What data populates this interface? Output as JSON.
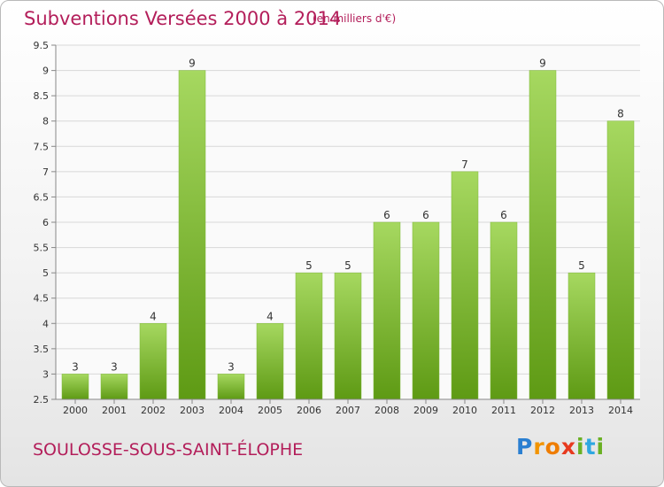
{
  "title": "Subventions Versées 2000 à 2014",
  "unit_note": "(en milliers d'€)",
  "location": "SOULOSSE-SOUS-SAINT-ÉLOPHE",
  "brand": "Proxiti",
  "colors": {
    "title": "#b31e5a",
    "bar_top": "#a6d860",
    "bar_bottom": "#5e9a14",
    "grid": "#d8d8d8"
  },
  "chart_data": {
    "type": "bar",
    "title": "Subventions Versées 2000 à 2014",
    "subtitle": "(en milliers d'€)",
    "xlabel": "",
    "ylabel": "",
    "categories": [
      "2000",
      "2001",
      "2002",
      "2003",
      "2004",
      "2005",
      "2006",
      "2007",
      "2008",
      "2009",
      "2010",
      "2011",
      "2012",
      "2013",
      "2014"
    ],
    "values": [
      3,
      3,
      4,
      9,
      3,
      4,
      5,
      5,
      6,
      6,
      7,
      6,
      9,
      5,
      8
    ],
    "ylim": [
      2.5,
      9.5
    ],
    "yticks": [
      "2.5",
      "3",
      "3.5",
      "4",
      "4.5",
      "5",
      "5.5",
      "6",
      "6.5",
      "7",
      "7.5",
      "8",
      "8.5",
      "9",
      "9.5"
    ],
    "grid": true,
    "legend": "none"
  }
}
